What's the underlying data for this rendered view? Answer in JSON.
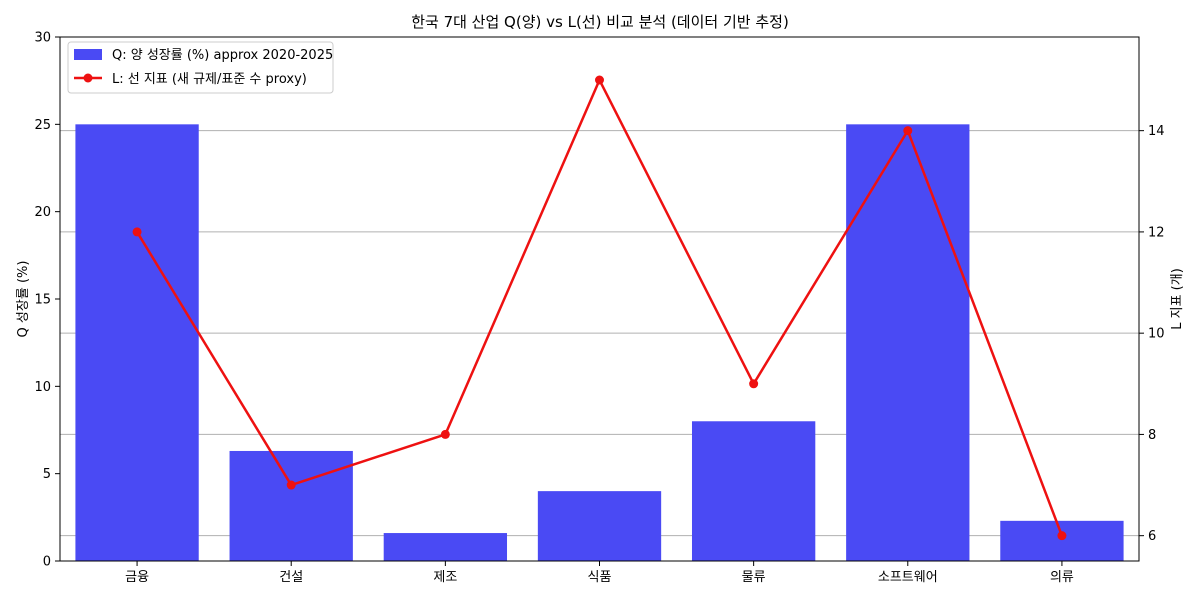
{
  "chart_data": {
    "type": "bar",
    "title": "한국 7대 산업 Q(양) vs L(선) 비교 분석 (데이터 기반 추정)",
    "categories": [
      "금융",
      "건설",
      "제조",
      "식품",
      "물류",
      "소프트웨어",
      "의류"
    ],
    "ylabel": "Q 성장률 (%)",
    "y2label": "L 지표 (개)",
    "ylim": [
      0,
      30
    ],
    "y2lim": [
      5.5,
      15.85
    ],
    "yticks": [
      0,
      5,
      10,
      15,
      20,
      25,
      30
    ],
    "y2ticks": [
      6,
      8,
      10,
      12,
      14
    ],
    "grid": true,
    "legend_position": "top-left",
    "series": [
      {
        "name": "Q: 양 성장률 (%) approx 2020-2025",
        "type": "bar",
        "axis": "left",
        "color": "#4a4af4",
        "values": [
          25,
          6.3,
          1.6,
          4,
          8,
          25,
          2.3
        ]
      },
      {
        "name": "L: 선 지표 (새 규제/표준 수 proxy)",
        "type": "line",
        "axis": "right",
        "color": "#ee1111",
        "values": [
          12,
          7,
          8,
          15,
          9,
          14,
          6
        ]
      }
    ]
  }
}
